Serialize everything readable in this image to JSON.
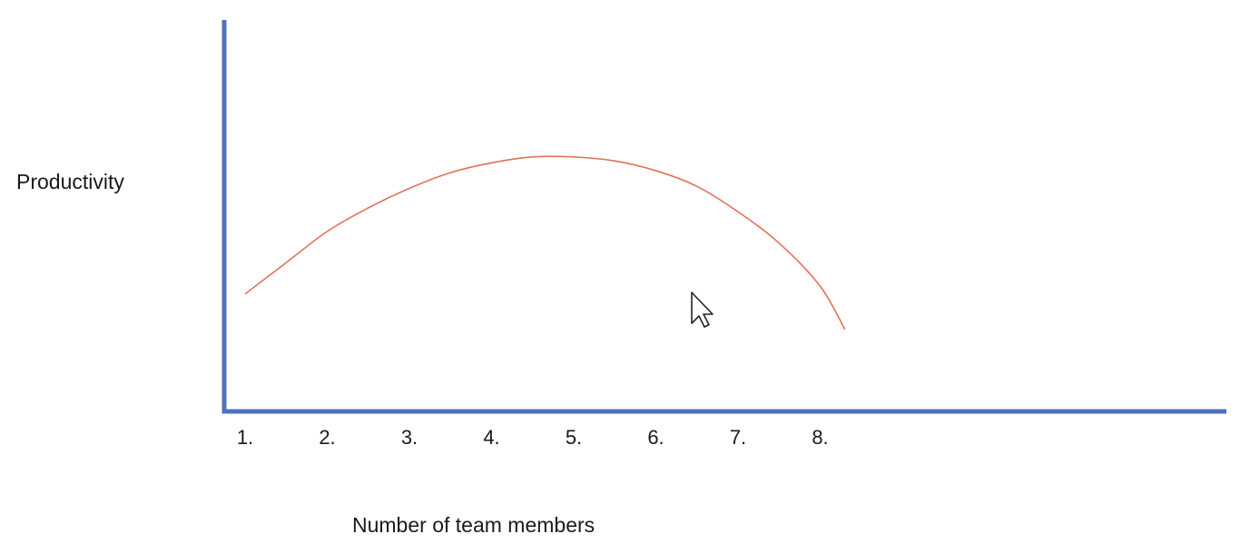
{
  "chart_data": {
    "type": "line",
    "title": "",
    "xlabel": "Number of team members",
    "ylabel": "Productivity",
    "categories": [
      "1.",
      "2.",
      "3.",
      "4.",
      "5.",
      "6.",
      "7.",
      "8."
    ],
    "x": [
      1.0,
      1.5,
      2,
      2.5,
      3,
      3.5,
      4,
      4.5,
      5,
      5.5,
      6,
      6.5,
      7,
      7.5,
      8,
      8.3
    ],
    "series": [
      {
        "values": [
          0.3,
          0.38,
          0.46,
          0.52,
          0.57,
          0.61,
          0.635,
          0.65,
          0.65,
          0.64,
          0.615,
          0.575,
          0.51,
          0.43,
          0.32,
          0.21
        ]
      }
    ],
    "ylim": [
      0,
      1
    ],
    "xlim": [
      1,
      13
    ],
    "grid": false,
    "legend": "none",
    "colors": {
      "axis": "#4f71be",
      "line": "#e0725a",
      "text": "#1a1a1a"
    }
  },
  "cursor": {
    "icon": "mouse-pointer-icon"
  }
}
